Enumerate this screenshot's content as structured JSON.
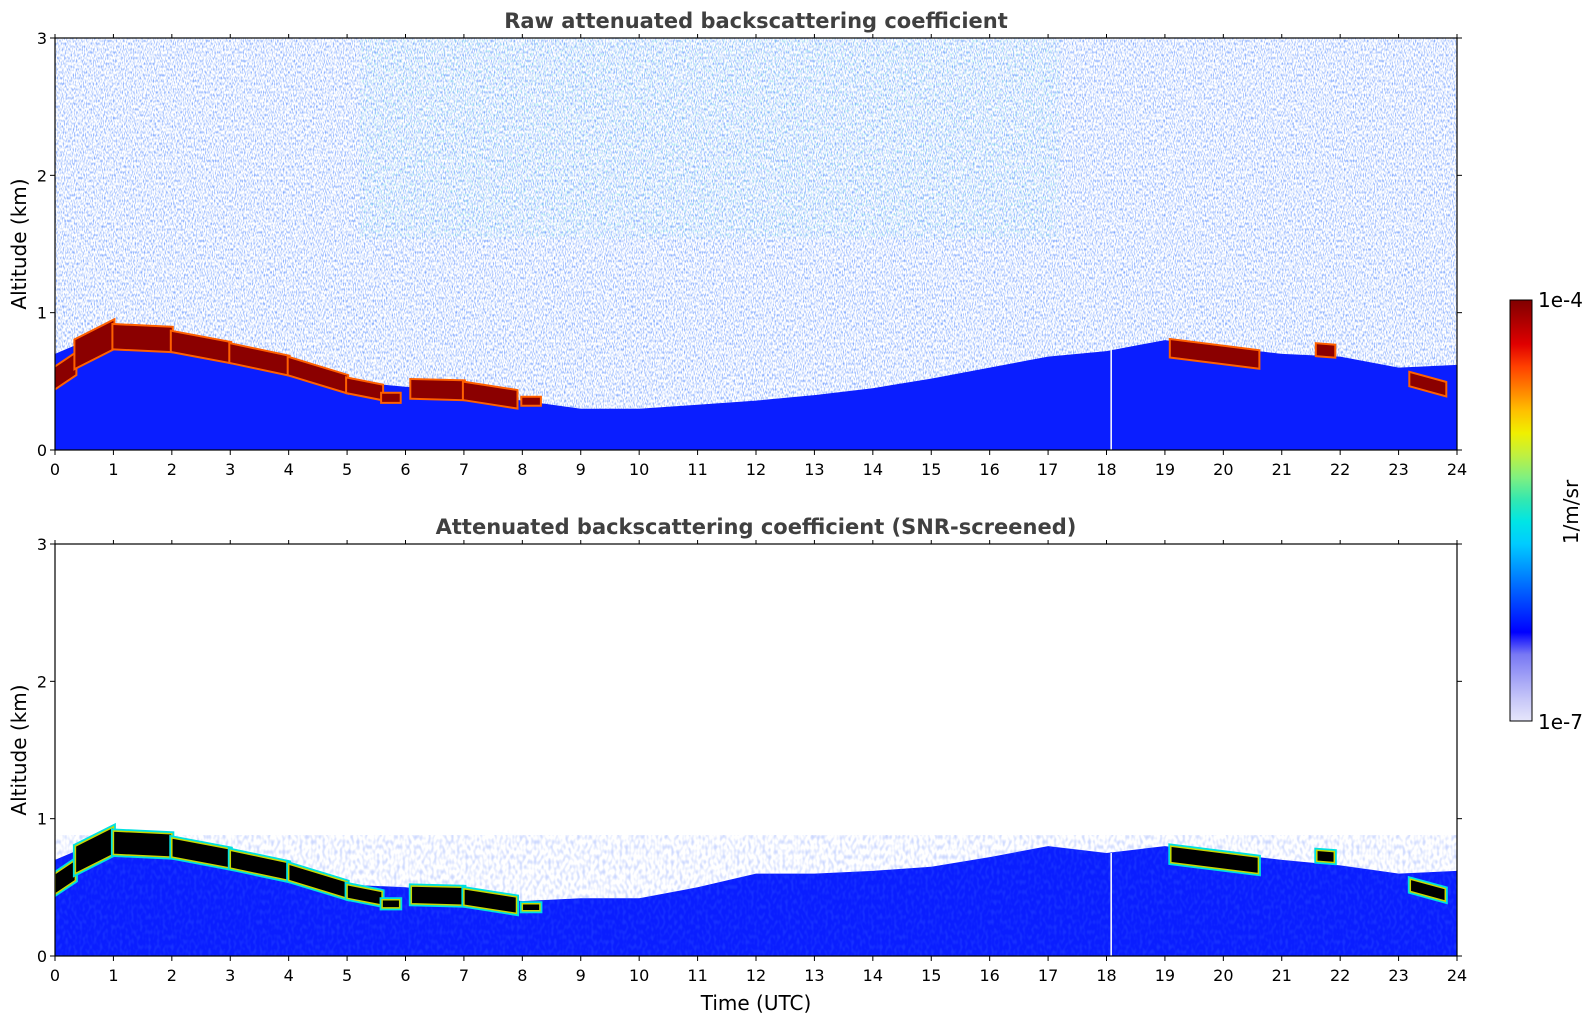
{
  "chart_data": [
    {
      "type": "heatmap",
      "title": "Raw attenuated backscattering coefficient",
      "xlabel": "",
      "ylabel": "Altitude (km)",
      "xlim": [
        0,
        24
      ],
      "ylim": [
        0,
        3
      ],
      "xticks": [
        "0",
        "1",
        "2",
        "3",
        "4",
        "5",
        "6",
        "7",
        "8",
        "9",
        "10",
        "11",
        "12",
        "13",
        "14",
        "15",
        "16",
        "17",
        "18",
        "19",
        "20",
        "21",
        "22",
        "23",
        "24"
      ],
      "yticks": [
        "0",
        "1",
        "2",
        "3"
      ],
      "screened": false,
      "gap_time_utc": 18.08,
      "aerosol_layer_top_km": [
        [
          0,
          0.7
        ],
        [
          1,
          0.88
        ],
        [
          2,
          0.82
        ],
        [
          3,
          0.74
        ],
        [
          4,
          0.62
        ],
        [
          5,
          0.5
        ],
        [
          6,
          0.46
        ],
        [
          7,
          0.42
        ],
        [
          8,
          0.36
        ],
        [
          9,
          0.3
        ],
        [
          10,
          0.3
        ],
        [
          11,
          0.33
        ],
        [
          12,
          0.36
        ],
        [
          13,
          0.4
        ],
        [
          14,
          0.45
        ],
        [
          15,
          0.52
        ],
        [
          16,
          0.6
        ],
        [
          17,
          0.68
        ],
        [
          18,
          0.72
        ],
        [
          19,
          0.8
        ],
        [
          20,
          0.75
        ],
        [
          21,
          0.7
        ],
        [
          22,
          0.68
        ],
        [
          23,
          0.6
        ],
        [
          24,
          0.62
        ]
      ],
      "cloud_segments": [
        {
          "t_start": 0,
          "t_end": 0.35,
          "base_start_km": 0.45,
          "base_end_km": 0.55,
          "thickness_km": 0.15
        },
        {
          "t_start": 0.35,
          "t_end": 1.0,
          "base_start_km": 0.6,
          "base_end_km": 0.74,
          "thickness_km": 0.2
        },
        {
          "t_start": 1.0,
          "t_end": 2.0,
          "base_start_km": 0.74,
          "base_end_km": 0.72,
          "thickness_km": 0.17
        },
        {
          "t_start": 2.0,
          "t_end": 3.0,
          "base_start_km": 0.72,
          "base_end_km": 0.64,
          "thickness_km": 0.14
        },
        {
          "t_start": 3.0,
          "t_end": 4.0,
          "base_start_km": 0.64,
          "base_end_km": 0.55,
          "thickness_km": 0.13
        },
        {
          "t_start": 4.0,
          "t_end": 5.0,
          "base_start_km": 0.55,
          "base_end_km": 0.42,
          "thickness_km": 0.12
        },
        {
          "t_start": 5.0,
          "t_end": 5.6,
          "base_start_km": 0.42,
          "base_end_km": 0.37,
          "thickness_km": 0.1
        },
        {
          "t_start": 5.6,
          "t_end": 5.9,
          "base_start_km": 0.35,
          "base_end_km": 0.35,
          "thickness_km": 0.06
        },
        {
          "t_start": 6.1,
          "t_end": 7.0,
          "base_start_km": 0.38,
          "base_end_km": 0.37,
          "thickness_km": 0.13
        },
        {
          "t_start": 7.0,
          "t_end": 7.9,
          "base_start_km": 0.37,
          "base_end_km": 0.31,
          "thickness_km": 0.12
        },
        {
          "t_start": 8.0,
          "t_end": 8.3,
          "base_start_km": 0.33,
          "base_end_km": 0.33,
          "thickness_km": 0.05
        },
        {
          "t_start": 19.1,
          "t_end": 20.6,
          "base_start_km": 0.68,
          "base_end_km": 0.6,
          "thickness_km": 0.12
        },
        {
          "t_start": 21.6,
          "t_end": 21.9,
          "base_start_km": 0.69,
          "base_end_km": 0.68,
          "thickness_km": 0.08
        },
        {
          "t_start": 23.2,
          "t_end": 23.8,
          "base_start_km": 0.47,
          "base_end_km": 0.4,
          "thickness_km": 0.09
        }
      ]
    },
    {
      "type": "heatmap",
      "title": "Attenuated backscattering coefficient (SNR-screened)",
      "xlabel": "Time (UTC)",
      "ylabel": "Altitude (km)",
      "xlim": [
        0,
        24
      ],
      "ylim": [
        0,
        3
      ],
      "xticks": [
        "0",
        "1",
        "2",
        "3",
        "4",
        "5",
        "6",
        "7",
        "8",
        "9",
        "10",
        "11",
        "12",
        "13",
        "14",
        "15",
        "16",
        "17",
        "18",
        "19",
        "20",
        "21",
        "22",
        "23",
        "24"
      ],
      "yticks": [
        "0",
        "1",
        "2",
        "3"
      ],
      "screened": true,
      "gap_time_utc": 18.08,
      "aerosol_layer_top_km": [
        [
          0,
          0.7
        ],
        [
          1,
          0.88
        ],
        [
          2,
          0.82
        ],
        [
          3,
          0.74
        ],
        [
          4,
          0.62
        ],
        [
          5,
          0.52
        ],
        [
          6,
          0.5
        ],
        [
          7,
          0.45
        ],
        [
          8,
          0.4
        ],
        [
          9,
          0.42
        ],
        [
          10,
          0.42
        ],
        [
          11,
          0.5
        ],
        [
          12,
          0.6
        ],
        [
          13,
          0.6
        ],
        [
          14,
          0.62
        ],
        [
          15,
          0.65
        ],
        [
          16,
          0.72
        ],
        [
          17,
          0.8
        ],
        [
          18,
          0.75
        ],
        [
          19,
          0.8
        ],
        [
          20,
          0.75
        ],
        [
          21,
          0.7
        ],
        [
          22,
          0.66
        ],
        [
          23,
          0.6
        ],
        [
          24,
          0.62
        ]
      ],
      "cloud_segments": [
        {
          "t_start": 0,
          "t_end": 0.35,
          "base_start_km": 0.45,
          "base_end_km": 0.55,
          "thickness_km": 0.15
        },
        {
          "t_start": 0.35,
          "t_end": 1.0,
          "base_start_km": 0.6,
          "base_end_km": 0.74,
          "thickness_km": 0.2
        },
        {
          "t_start": 1.0,
          "t_end": 2.0,
          "base_start_km": 0.74,
          "base_end_km": 0.72,
          "thickness_km": 0.17
        },
        {
          "t_start": 2.0,
          "t_end": 3.0,
          "base_start_km": 0.72,
          "base_end_km": 0.64,
          "thickness_km": 0.14
        },
        {
          "t_start": 3.0,
          "t_end": 4.0,
          "base_start_km": 0.64,
          "base_end_km": 0.55,
          "thickness_km": 0.13
        },
        {
          "t_start": 4.0,
          "t_end": 5.0,
          "base_start_km": 0.55,
          "base_end_km": 0.42,
          "thickness_km": 0.12
        },
        {
          "t_start": 5.0,
          "t_end": 5.6,
          "base_start_km": 0.42,
          "base_end_km": 0.37,
          "thickness_km": 0.1
        },
        {
          "t_start": 5.6,
          "t_end": 5.9,
          "base_start_km": 0.35,
          "base_end_km": 0.35,
          "thickness_km": 0.06
        },
        {
          "t_start": 6.1,
          "t_end": 7.0,
          "base_start_km": 0.38,
          "base_end_km": 0.37,
          "thickness_km": 0.13
        },
        {
          "t_start": 7.0,
          "t_end": 7.9,
          "base_start_km": 0.37,
          "base_end_km": 0.31,
          "thickness_km": 0.12
        },
        {
          "t_start": 8.0,
          "t_end": 8.3,
          "base_start_km": 0.33,
          "base_end_km": 0.33,
          "thickness_km": 0.05
        },
        {
          "t_start": 19.1,
          "t_end": 20.6,
          "base_start_km": 0.68,
          "base_end_km": 0.6,
          "thickness_km": 0.12
        },
        {
          "t_start": 21.6,
          "t_end": 21.9,
          "base_start_km": 0.69,
          "base_end_km": 0.68,
          "thickness_km": 0.08
        },
        {
          "t_start": 23.2,
          "t_end": 23.8,
          "base_start_km": 0.47,
          "base_end_km": 0.4,
          "thickness_km": 0.09
        }
      ]
    }
  ],
  "colorbar": {
    "label": "1/m/sr",
    "max_label": "1e-4",
    "min_label": "1e-7",
    "colors": [
      "#e6e6fa",
      "#c6c6f8",
      "#a0a0f6",
      "#7878f4",
      "#0000ff",
      "#0033ff",
      "#0066ff",
      "#0099ff",
      "#00ccff",
      "#00e5e5",
      "#33e8b0",
      "#80f080",
      "#c0f040",
      "#f0f000",
      "#ffc000",
      "#ff8000",
      "#ff4000",
      "#e00000",
      "#b00000",
      "#800000"
    ]
  },
  "colors": {
    "raw_cloud": "#8b0000",
    "screened_cloud": "#000000",
    "aerosol": "#0a1eff",
    "background_noise": "#1a3cff",
    "upper_noise": "#40c0d0"
  }
}
